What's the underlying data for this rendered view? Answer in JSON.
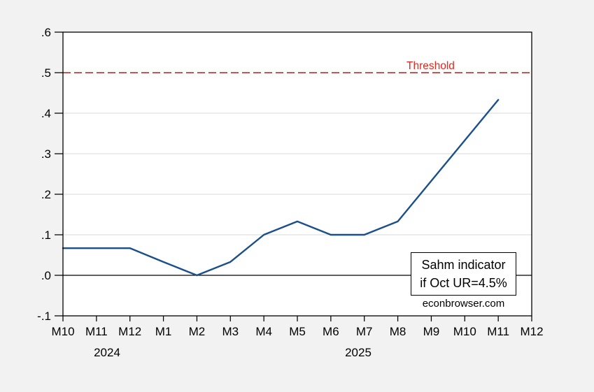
{
  "chart_data": {
    "type": "line",
    "title": "",
    "xlabel": "",
    "ylabel": "",
    "ylim": [
      -0.1,
      0.6
    ],
    "grid": "horizontal",
    "legend_position": "none",
    "x_tick_labels": [
      "M10",
      "M11",
      "M12",
      "M1",
      "M2",
      "M3",
      "M4",
      "M5",
      "M6",
      "M7",
      "M8",
      "M9",
      "M10",
      "M11",
      "M12"
    ],
    "year_labels": [
      "2024",
      "2025"
    ],
    "y_tick_labels": [
      ".6",
      ".5",
      ".4",
      ".3",
      ".2",
      ".1",
      ".0",
      "-.1"
    ],
    "y_tick_values": [
      0.6,
      0.5,
      0.4,
      0.3,
      0.2,
      0.1,
      0,
      -0.1
    ],
    "series": [
      {
        "name": "Sahm indicator if Oct UR=4.5%",
        "x": [
          "2024-M10",
          "2024-M11",
          "2024-M12",
          "2025-M1",
          "2025-M2",
          "2025-M3",
          "2025-M4",
          "2025-M5",
          "2025-M6",
          "2025-M7",
          "2025-M8",
          "2025-M9",
          "2025-M10",
          "2025-M11"
        ],
        "values": [
          0.067,
          0.067,
          0.067,
          0.033,
          0.0,
          0.033,
          0.1,
          0.133,
          0.1,
          0.1,
          0.133,
          0.233,
          0.333,
          0.433
        ]
      }
    ],
    "threshold": {
      "value": 0.5,
      "label": "Threshold"
    },
    "zero_line": true,
    "annotation": {
      "line1": "Sahm indicator",
      "line2": "if Oct UR=4.5%"
    },
    "watermark": "econbrowser.com",
    "colors": {
      "background": "#f2f2f2",
      "plot_bg": "#ffffff",
      "grid": "#d9d9d9",
      "axis": "#000000",
      "series_line": "#1a4f8c",
      "threshold_line": "#b01e1e",
      "threshold_label": "#e8231a"
    }
  }
}
